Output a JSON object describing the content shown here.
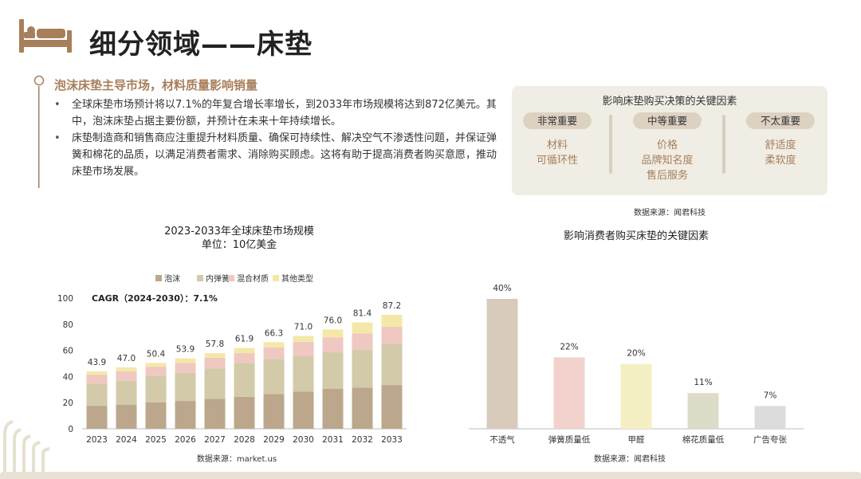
{
  "header": {
    "title": "细分领域——床垫"
  },
  "section": {
    "title": "泡沫床垫主导市场，材料质量影响销量",
    "bullets": [
      "全球床垫市场预计将以7.1%的年复合增长率增长，到2033年市场规模将达到872亿美元。其中，泡沫床垫占据主要份额，并预计在未来十年持续增长。",
      "床垫制造商和销售商应注重提升材料质量、确保可持续性、解决空气不渗透性问题，并保证弹簧和棉花的品质，以满足消费者需求、消除购买顾虑。这将有助于提高消费者购买意愿，推动床垫市场发展。"
    ]
  },
  "factors_box": {
    "title": "影响床垫购买决策的关键因素",
    "columns": [
      {
        "label": "非常重要",
        "items": [
          "材料",
          "可循环性"
        ]
      },
      {
        "label": "中等重要",
        "items": [
          "价格",
          "品牌知名度",
          "售后服务"
        ]
      },
      {
        "label": "不太重要",
        "items": [
          "舒适度",
          "柔软度"
        ]
      }
    ],
    "source": "数据来源：闻君科技"
  },
  "colors": {
    "foam": "#bca78c",
    "spring": "#d2caa9",
    "hybrid": "#efc8c1",
    "other": "#f4e8a8",
    "accent_brown": "#a87f5b",
    "box_bg": "#efede4",
    "pill_bg": "#ddd2c2"
  },
  "chart_data": [
    {
      "type": "bar",
      "stacked": true,
      "title": "2023-2033年全球床垫市场规模",
      "subtitle": "单位：10亿美金",
      "annotation": "CAGR（2024-2030）：7.1%",
      "categories": [
        "2023",
        "2024",
        "2025",
        "2026",
        "2027",
        "2028",
        "2029",
        "2030",
        "2031",
        "2032",
        "2033"
      ],
      "totals": [
        43.9,
        47.0,
        50.4,
        53.9,
        57.8,
        61.9,
        66.3,
        71.0,
        76.0,
        81.4,
        87.2
      ],
      "series": [
        {
          "name": "泡沫",
          "color": "#bca78c",
          "values": [
            17.6,
            18.3,
            20.3,
            21.3,
            23.0,
            24.5,
            26.5,
            28.5,
            30.5,
            31.5,
            33.5
          ]
        },
        {
          "name": "内弹簧",
          "color": "#d2caa9",
          "values": [
            16.8,
            18.5,
            20.0,
            21.5,
            23.0,
            26.0,
            27.0,
            27.0,
            28.0,
            29.0,
            31.5
          ]
        },
        {
          "name": "混合材质",
          "color": "#efc8c1",
          "values": [
            7.0,
            7.2,
            7.2,
            7.6,
            8.3,
            7.4,
            8.8,
            11.0,
            11.5,
            12.5,
            13.0
          ]
        },
        {
          "name": "其他类型",
          "color": "#f4e8a8",
          "values": [
            2.5,
            3.0,
            2.9,
            3.5,
            3.5,
            4.0,
            4.0,
            4.5,
            6.0,
            8.4,
            9.2
          ]
        }
      ],
      "ylim": [
        0,
        100
      ],
      "yticks": [
        0,
        20,
        40,
        60,
        80,
        100
      ],
      "legend": "top",
      "grid": false,
      "source": "数据来源：market.us"
    },
    {
      "type": "bar",
      "title": "影响消费者购买床垫的关键因素",
      "categories": [
        "不透气",
        "弹簧质量低",
        "甲醛",
        "棉花质量低",
        "广告夸张"
      ],
      "values": [
        40,
        22,
        20,
        11,
        7
      ],
      "value_labels": [
        "40%",
        "22%",
        "20%",
        "11%",
        "7%"
      ],
      "colors": [
        "#d9cbbb",
        "#f1d2cd",
        "#f5f0c3",
        "#dcdcc8",
        "#dcdcdc"
      ],
      "ylim": [
        0,
        45
      ],
      "grid": false,
      "source": "数据来源：闻君科技"
    }
  ]
}
